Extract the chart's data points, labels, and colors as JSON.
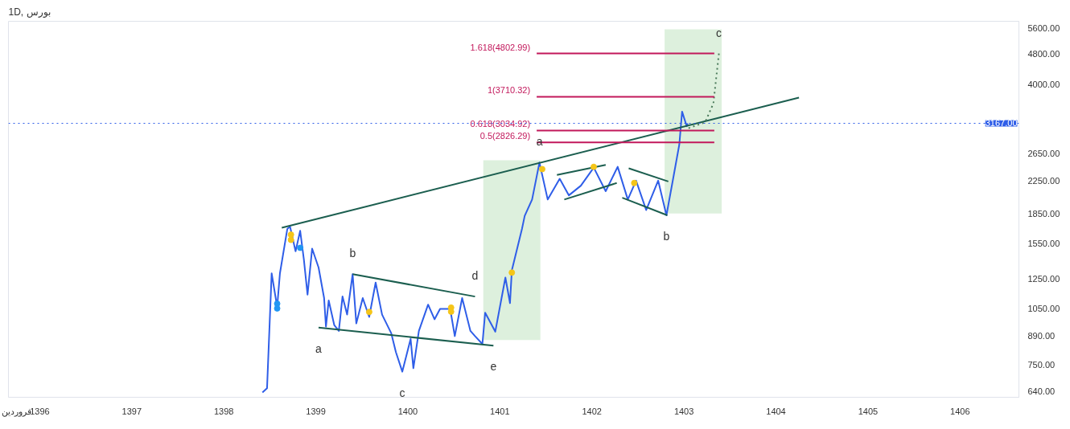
{
  "chart_data": {
    "type": "line",
    "title": "1D, بورس",
    "xlim": [
      1395.66,
      1406.64
    ],
    "xticks": [
      {
        "value": 1395.75,
        "label": "فروردین"
      },
      1396,
      1397,
      1398,
      1399,
      1400,
      1401,
      1402,
      1403,
      1404,
      1405,
      1406
    ],
    "ylim": [
      618,
      5820
    ],
    "log": true,
    "yticks": [
      {
        "value": 640,
        "label": "640.00"
      },
      {
        "value": 750,
        "label": "750.00"
      },
      {
        "value": 890,
        "label": "890.00"
      },
      {
        "value": 1050,
        "label": "1050.00"
      },
      {
        "value": 1250,
        "label": "1250.00"
      },
      {
        "value": 1550,
        "label": "1550.00"
      },
      {
        "value": 1850,
        "label": "1850.00"
      },
      {
        "value": 2250,
        "label": "2250.00"
      },
      {
        "value": 2650,
        "label": "2650.00"
      },
      {
        "value": 4000,
        "label": "4000.00"
      },
      {
        "value": 4800,
        "label": "4800.00"
      },
      {
        "value": 5600,
        "label": "5600.00"
      }
    ],
    "grid": false,
    "legend": false,
    "marker": "none",
    "line_style": "solid",
    "series": [
      {
        "type": "bar",
        "color": "#d9eed9",
        "x": [
          1401.13
        ],
        "values": [
          1670
        ],
        "base": [
          870
        ]
      },
      {
        "type": "bar",
        "color": "#d9eed9",
        "x": [
          1403.1
        ],
        "values": [
          3700
        ],
        "base": [
          1850
        ]
      },
      {
        "color": "#2f5ee8",
        "x": [
          1398.42,
          1398.47,
          1398.52,
          1398.58,
          1398.61,
          1398.69,
          1398.72,
          1398.78,
          1398.83,
          1398.87,
          1398.91,
          1398.96,
          1399.03,
          1399.09,
          1399.11,
          1399.14,
          1399.2,
          1399.25,
          1399.29,
          1399.34,
          1399.4,
          1399.44,
          1399.51,
          1399.58,
          1399.65,
          1399.72,
          1399.82,
          1399.87,
          1399.94,
          1400.03,
          1400.06,
          1400.12,
          1400.22,
          1400.29,
          1400.35,
          1400.46,
          1400.51,
          1400.59,
          1400.68,
          1400.73,
          1400.81,
          1400.84,
          1400.95,
          1401.06,
          1401.11,
          1401.13,
          1401.24,
          1401.27,
          1401.35,
          1401.43,
          1401.46,
          1401.52,
          1401.65,
          1401.75,
          1401.88,
          1402.02,
          1402.15,
          1402.28,
          1402.39,
          1402.48,
          1402.59,
          1402.72,
          1402.81,
          1402.89,
          1402.95,
          1402.98,
          1403.03,
          1403.04
        ],
        "values": [
          636,
          652,
          1294,
          1059,
          1294,
          1686,
          1710,
          1476,
          1668,
          1406,
          1140,
          1500,
          1340,
          1117,
          942,
          1101,
          951,
          918,
          1127,
          1012,
          1288,
          960,
          1117,
          998,
          1225,
          1012,
          905,
          809,
          720,
          875,
          735,
          918,
          1074,
          984,
          1047,
          1047,
          890,
          1117,
          918,
          890,
          849,
          1023,
          914,
          1262,
          1084,
          1318,
          1686,
          1824,
          2010,
          2506,
          2328,
          2010,
          2275,
          2061,
          2183,
          2432,
          2113,
          2443,
          2010,
          2250,
          1888,
          2250,
          1830,
          2328,
          2793,
          3396,
          3112,
          3167
        ]
      },
      {
        "type": "line",
        "color": "#1b5e4f",
        "x": [
          1398.63,
          1404.25
        ],
        "values": [
          1698,
          3690
        ]
      },
      {
        "type": "line",
        "color": "#1b5e4f",
        "x": [
          1399.4,
          1400.73
        ],
        "values": [
          1288,
          1127
        ]
      },
      {
        "type": "line",
        "color": "#1b5e4f",
        "x": [
          1399.03,
          1400.93
        ],
        "values": [
          936,
          841
        ]
      },
      {
        "type": "line",
        "color": "#1b5e4f",
        "x": [
          1401.62,
          1402.15
        ],
        "values": [
          2328,
          2472
        ]
      },
      {
        "type": "line",
        "color": "#1b5e4f",
        "x": [
          1401.7,
          1402.27
        ],
        "values": [
          2010,
          2218
        ]
      },
      {
        "type": "line",
        "color": "#1b5e4f",
        "x": [
          1402.4,
          1402.83
        ],
        "values": [
          2421,
          2239
        ]
      },
      {
        "type": "line",
        "color": "#1b5e4f",
        "x": [
          1402.33,
          1402.82
        ],
        "values": [
          2032,
          1830
        ]
      },
      {
        "type": "line",
        "color": "#4a7a5a",
        "line_style": "dotted",
        "x": [
          1403.05,
          1403.23,
          1403.32,
          1403.38
        ],
        "values": [
          3076,
          3186,
          3565,
          4800
        ]
      },
      {
        "type": "line",
        "name": "1.618(4802.99)",
        "color": "#c2185b",
        "x": [
          1401.4,
          1403.33
        ],
        "values": [
          4802.99,
          4802.99
        ]
      },
      {
        "type": "line",
        "name": "1(3710.32)",
        "color": "#c2185b",
        "x": [
          1401.4,
          1403.33
        ],
        "values": [
          3710.32,
          3710.32
        ]
      },
      {
        "type": "line",
        "name": "0.618(3034.92)",
        "color": "#c2185b",
        "x": [
          1401.4,
          1403.33
        ],
        "values": [
          3034.92,
          3034.92
        ]
      },
      {
        "type": "line",
        "name": "0.5(2826.29)",
        "color": "#c2185b",
        "x": [
          1401.4,
          1403.33
        ],
        "values": [
          2826.29,
          2826.29
        ]
      },
      {
        "type": "scatter",
        "color": "#f5c518",
        "x": [
          1398.73,
          1398.73,
          1399.58,
          1400.47,
          1400.47,
          1401.13,
          1401.46,
          1402.02,
          1402.46
        ],
        "values": [
          1630,
          1580,
          1028,
          1055,
          1030,
          1300,
          2410,
          2443,
          2218
        ]
      },
      {
        "type": "scatter",
        "color": "#2196f3",
        "x": [
          1398.58,
          1398.58,
          1398.83
        ],
        "values": [
          1080,
          1050,
          1507
        ]
      }
    ],
    "ref_lines": [
      {
        "axis": "y",
        "value": 3167,
        "label": "3167.00",
        "color": "#2f5ee8",
        "line_style": "dotted"
      }
    ],
    "annotations": [
      {
        "text": "a",
        "x": 1399.03,
        "y": 936
      },
      {
        "text": "b",
        "x": 1399.4,
        "y": 1288
      },
      {
        "text": "c",
        "x": 1399.94,
        "y": 720
      },
      {
        "text": "d",
        "x": 1400.73,
        "y": 1127
      },
      {
        "text": "e",
        "x": 1400.93,
        "y": 841
      },
      {
        "text": "a",
        "x": 1401.43,
        "y": 2506
      },
      {
        "text": "b",
        "x": 1402.81,
        "y": 1830
      },
      {
        "text": "c",
        "x": 1403.38,
        "y": 4800
      }
    ]
  }
}
